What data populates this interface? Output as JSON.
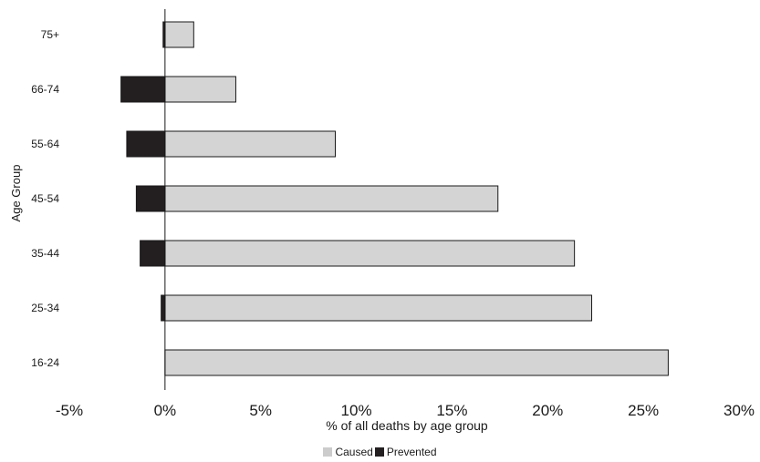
{
  "chart_data": {
    "type": "bar",
    "orientation": "horizontal",
    "stacking": "diverging",
    "categories": [
      "16-24",
      "25-34",
      "35-44",
      "45-54",
      "55-64",
      "66-74",
      "75+"
    ],
    "series": [
      {
        "name": "Caused",
        "values": [
          26.3,
          22.3,
          21.4,
          17.4,
          8.9,
          3.7,
          1.5
        ],
        "color": "#d4d4d4"
      },
      {
        "name": "Prevented",
        "values": [
          0,
          -0.2,
          -1.3,
          -1.5,
          -2.0,
          -2.3,
          -0.1
        ],
        "color": "#231f20"
      }
    ],
    "xlabel": "% of all deaths by age group",
    "ylabel": "Age Group",
    "xlim": [
      -5,
      30
    ],
    "xticks": [
      -5,
      0,
      5,
      10,
      15,
      20,
      25,
      30
    ],
    "xtick_labels": [
      "-5%",
      "0%",
      "5%",
      "10%",
      "15%",
      "20%",
      "25%",
      "30%"
    ],
    "legend_position": "bottom-center",
    "grid": false
  }
}
